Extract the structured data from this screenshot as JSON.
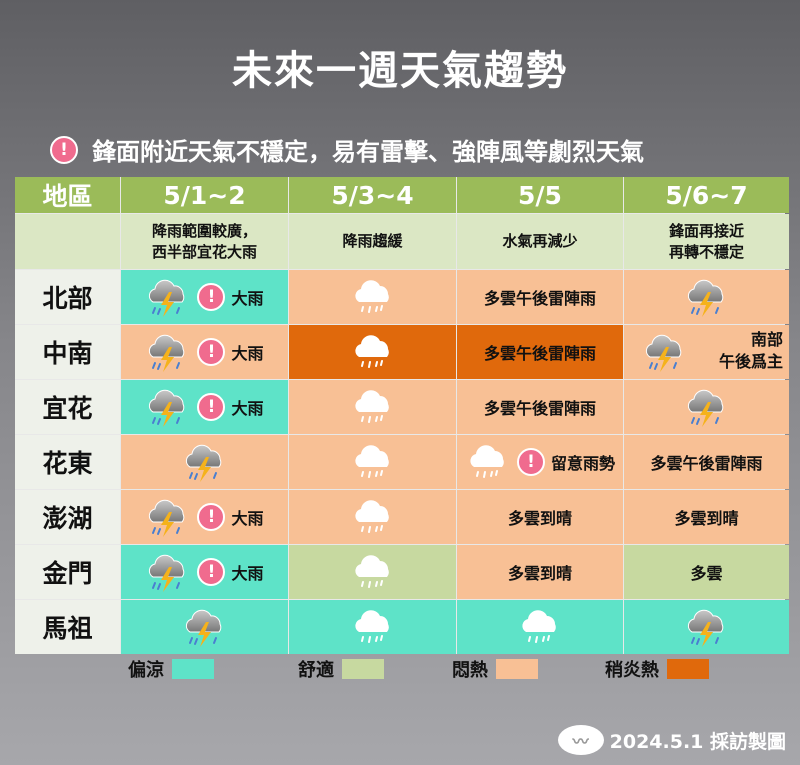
{
  "title": "未來一週天氣趨勢",
  "alert": "鋒面附近天氣不穩定，易有雷擊、強陣風等劇烈天氣",
  "alert_icon": "exclamation-icon",
  "headers": [
    "地區",
    "5/1~2",
    "5/3~4",
    "5/5",
    "5/6~7"
  ],
  "subheaders": [
    "",
    "降雨範圍較廣，\n西半部宜花大雨",
    "降雨趨緩",
    "水氣再減少",
    "鋒面再接近\n再轉不穩定"
  ],
  "colors": {
    "cool": "#5ee3c8",
    "comfort": "#c7d9a0",
    "muggy": "#f8c095",
    "hot": "#e0690c",
    "header": "#9bbb59"
  },
  "rows": [
    {
      "region": "北部",
      "cells": [
        {
          "temp": "cool",
          "icon": "storm",
          "alert": true,
          "text": "大雨"
        },
        {
          "temp": "muggy",
          "icon": "rain"
        },
        {
          "temp": "muggy",
          "text": "多雲午後雷陣雨"
        },
        {
          "temp": "muggy",
          "icon": "storm"
        }
      ]
    },
    {
      "region": "中南",
      "cells": [
        {
          "temp": "muggy",
          "icon": "storm",
          "alert": true,
          "text": "大雨"
        },
        {
          "temp": "hot",
          "icon": "rain"
        },
        {
          "temp": "hot",
          "text": "多雲午後雷陣雨"
        },
        {
          "temp": "muggy",
          "icon": "storm",
          "note": "南部\n午後爲主"
        }
      ]
    },
    {
      "region": "宜花",
      "cells": [
        {
          "temp": "cool",
          "icon": "storm",
          "alert": true,
          "text": "大雨"
        },
        {
          "temp": "muggy",
          "icon": "rain"
        },
        {
          "temp": "muggy",
          "text": "多雲午後雷陣雨"
        },
        {
          "temp": "muggy",
          "icon": "storm"
        }
      ]
    },
    {
      "region": "花東",
      "cells": [
        {
          "temp": "muggy",
          "icon": "storm"
        },
        {
          "temp": "muggy",
          "icon": "rain"
        },
        {
          "temp": "muggy",
          "icon": "rain",
          "alert": true,
          "text": "留意雨勢"
        },
        {
          "temp": "muggy",
          "text": "多雲午後雷陣雨"
        }
      ]
    },
    {
      "region": "澎湖",
      "cells": [
        {
          "temp": "muggy",
          "icon": "storm",
          "alert": true,
          "text": "大雨"
        },
        {
          "temp": "muggy",
          "icon": "rain"
        },
        {
          "temp": "muggy",
          "text": "多雲到晴"
        },
        {
          "temp": "muggy",
          "text": "多雲到晴"
        }
      ]
    },
    {
      "region": "金門",
      "cells": [
        {
          "temp": "cool",
          "icon": "storm",
          "alert": true,
          "text": "大雨"
        },
        {
          "temp": "comfort",
          "icon": "rain"
        },
        {
          "temp": "muggy",
          "text": "多雲到晴"
        },
        {
          "temp": "comfort",
          "text": "多雲"
        }
      ]
    },
    {
      "region": "馬祖",
      "cells": [
        {
          "temp": "cool",
          "icon": "storm"
        },
        {
          "temp": "cool",
          "icon": "rain"
        },
        {
          "temp": "cool",
          "icon": "rain"
        },
        {
          "temp": "cool",
          "icon": "storm"
        }
      ]
    }
  ],
  "legend": [
    {
      "label": "偏涼",
      "temp": "cool"
    },
    {
      "label": "舒適",
      "temp": "comfort"
    },
    {
      "label": "悶熱",
      "temp": "muggy"
    },
    {
      "label": "稍炎熱",
      "temp": "hot"
    }
  ],
  "credit": "2024.5.1 採訪製圖",
  "bang": "!"
}
